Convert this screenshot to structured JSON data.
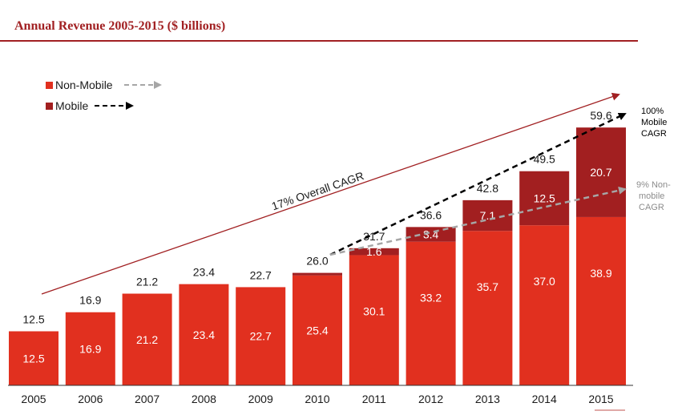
{
  "header": {
    "title": "Annual Revenue 2005-2015 ($ billions)"
  },
  "chart_data": {
    "type": "bar",
    "stacked": true,
    "categories": [
      "2005",
      "2006",
      "2007",
      "2008",
      "2009",
      "2010",
      "2011",
      "2012",
      "2013",
      "2014",
      "2015"
    ],
    "series": [
      {
        "name": "Non-Mobile",
        "color": "#e1301f",
        "values": [
          12.5,
          16.9,
          21.2,
          23.4,
          22.7,
          25.4,
          30.1,
          33.2,
          35.7,
          37.0,
          38.9
        ],
        "value_labels": [
          "12.5",
          "16.9",
          "21.2",
          "23.4",
          "22.7",
          "25.4",
          "30.1",
          "33.2",
          "35.7",
          "37.0",
          "38.9"
        ]
      },
      {
        "name": "Mobile",
        "color": "#a21f20",
        "values": [
          0,
          0,
          0,
          0,
          0,
          0.6,
          1.6,
          3.4,
          7.1,
          12.5,
          20.7
        ],
        "value_labels": [
          "",
          "",
          "",
          "",
          "",
          "",
          "1.6",
          "3.4",
          "7.1",
          "12.5",
          "20.7"
        ]
      }
    ],
    "totals": [
      "12.5",
      "16.9",
      "21.2",
      "23.4",
      "22.7",
      "26.0",
      "31.7",
      "36.6",
      "42.8",
      "49.5",
      "59.6"
    ],
    "ylim": [
      0,
      70
    ],
    "legend": {
      "placement": "top-left"
    },
    "annotations": {
      "overall_cagr": "17% Overall CAGR",
      "mobile_cagr": [
        "100%",
        "Mobile",
        "CAGR"
      ],
      "nonmobile_cagr": [
        "9% Non-",
        "mobile",
        "CAGR"
      ]
    },
    "grid": false
  }
}
